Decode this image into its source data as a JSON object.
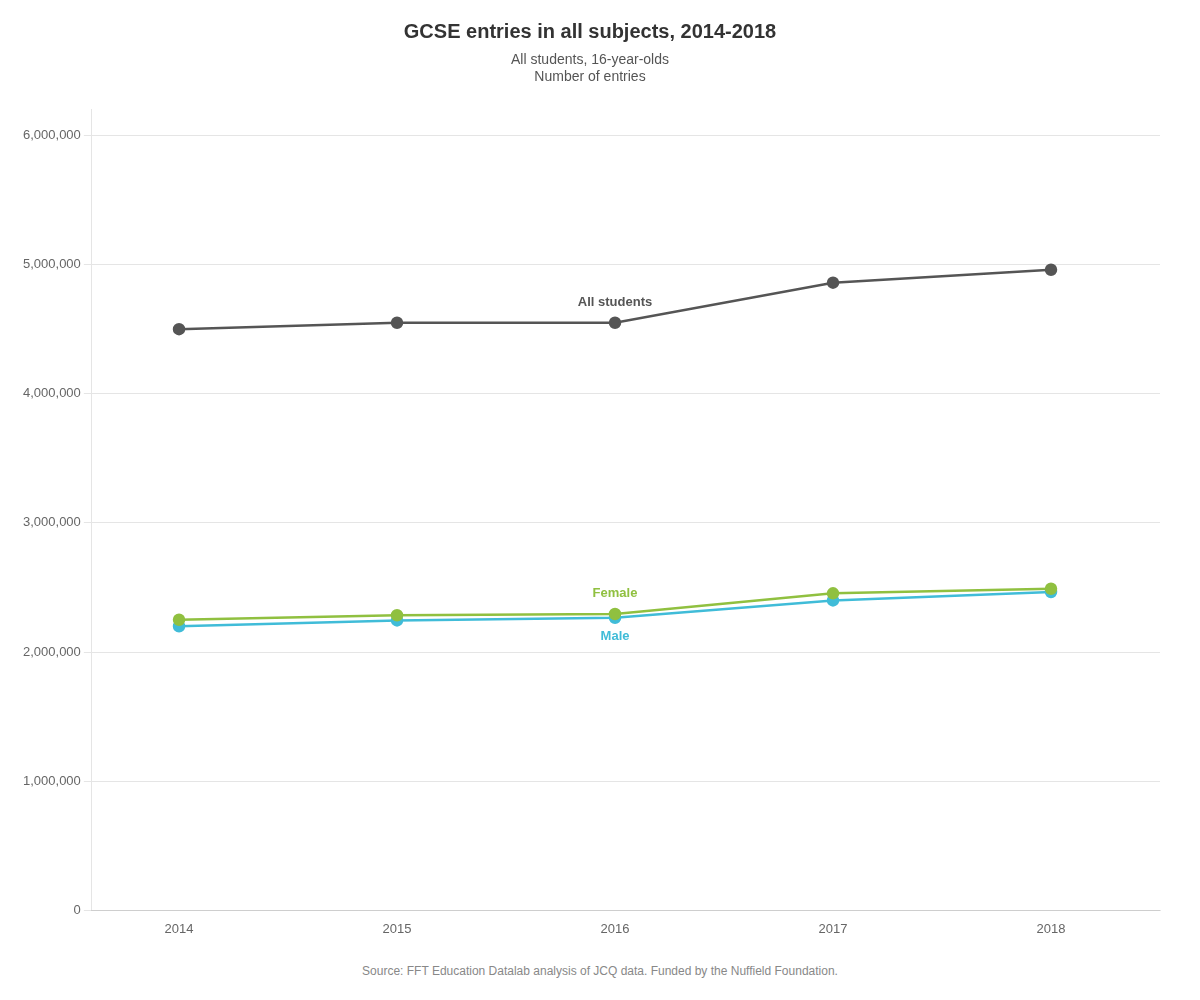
{
  "chart_data": {
    "type": "line",
    "title": "GCSE entries in all subjects, 2014-2018",
    "subtitle": [
      "All students, 16-year-olds",
      "Number of entries"
    ],
    "source": "Source: FFT Education Datalab analysis of JCQ data. Funded by the Nuffield Foundation.",
    "x": [
      2014,
      2015,
      2016,
      2017,
      2018
    ],
    "series": [
      {
        "name": "All students",
        "color": "#555555",
        "values": [
          4500000,
          4550000,
          4550000,
          4860000,
          4960000
        ]
      },
      {
        "name": "Female",
        "color": "#90c040",
        "values": [
          2250000,
          2285000,
          2295000,
          2455000,
          2490000
        ]
      },
      {
        "name": "Male",
        "color": "#40bcd8",
        "values": [
          2200000,
          2245000,
          2265000,
          2400000,
          2465000
        ]
      }
    ],
    "marker": "circle",
    "xlim": [
      2013.6,
      2018.5
    ],
    "xticks": [
      2014,
      2015,
      2016,
      2017,
      2018
    ],
    "ylim": [
      0,
      6200000
    ],
    "yticks": [
      0,
      {
        "value": 1000000,
        "label": "1,000,000"
      },
      {
        "value": 2000000,
        "label": "2,000,000"
      },
      {
        "value": 3000000,
        "label": "3,000,000"
      },
      {
        "value": 4000000,
        "label": "4,000,000"
      },
      {
        "value": 5000000,
        "label": "5,000,000"
      },
      {
        "value": 6000000,
        "label": "6,000,000"
      }
    ],
    "grid": true
  }
}
